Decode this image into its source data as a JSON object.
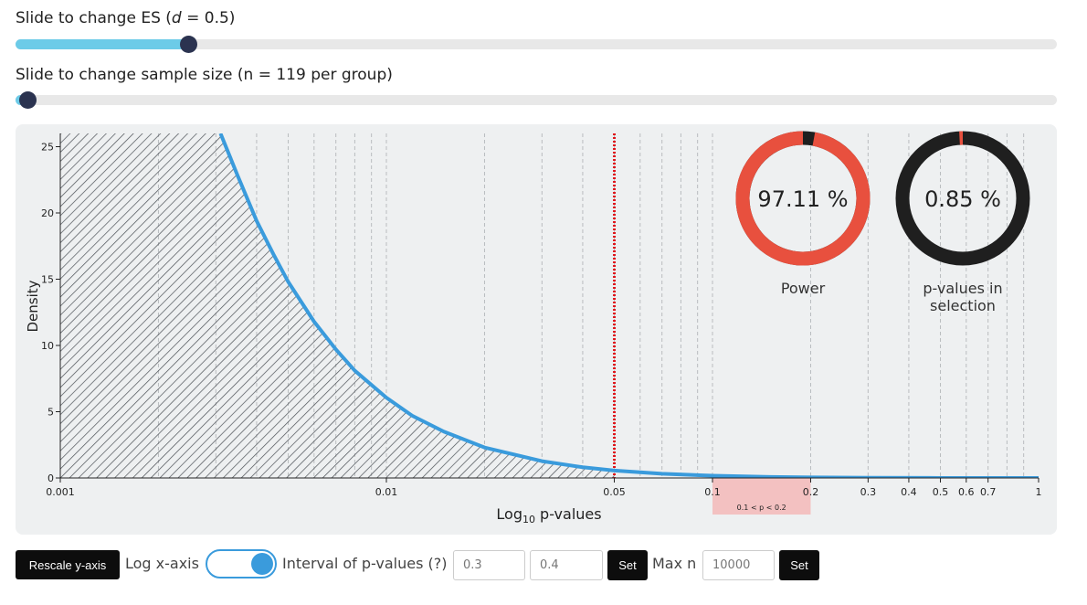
{
  "sliders": [
    {
      "label": "Slide to change ES (",
      "label_var": "d",
      "label_rest": " = 0.5)"
    },
    {
      "label": "Slide to change sample size (n = 119 per group)"
    }
  ],
  "chart_data": {
    "type": "line",
    "x_scale": "log",
    "xlabel": "Log",
    "xlabel_sub": "10",
    "xlabel_rest": " p-values",
    "ylabel": "Density",
    "xlim": [
      0.001,
      1
    ],
    "ylim": [
      0,
      26
    ],
    "xticks": [
      0.001,
      0.01,
      0.05,
      0.1,
      0.2,
      0.3,
      0.4,
      0.5,
      0.6,
      0.7,
      1
    ],
    "xminor": [
      0.002,
      0.003,
      0.004,
      0.005,
      0.006,
      0.007,
      0.008,
      0.009,
      0.02,
      0.03,
      0.04,
      0.06,
      0.07,
      0.08,
      0.09,
      0.8,
      0.9
    ],
    "yticks": [
      0,
      5,
      10,
      15,
      20,
      25
    ],
    "x": [
      0.0031,
      0.0035,
      0.004,
      0.0045,
      0.005,
      0.006,
      0.007,
      0.008,
      0.01,
      0.012,
      0.015,
      0.02,
      0.03,
      0.04,
      0.05,
      0.07,
      0.1,
      0.15,
      0.2,
      0.3,
      0.5,
      0.7,
      1
    ],
    "values": [
      26,
      22.8,
      19.4,
      16.9,
      14.8,
      11.8,
      9.7,
      8.1,
      6.06,
      4.7,
      3.5,
      2.3,
      1.27,
      0.81,
      0.56,
      0.32,
      0.17,
      0.08,
      0.04,
      0.02,
      0.004,
      0.002,
      0.001
    ],
    "color": "#3a9bdc",
    "alpha": 0.05,
    "alpha_color": "#e0151b",
    "shade_color": "#4a4f55",
    "selection": {
      "range": [
        0.1,
        0.2
      ],
      "label": "0.1 < p < 0.2",
      "color": "#f3c1c1"
    }
  },
  "gauges": [
    {
      "type": "pie",
      "value": 97.11,
      "value_label": "97.11 %",
      "caption": "Power",
      "color": "#e8503e",
      "track": "#1f1f1f"
    },
    {
      "type": "pie",
      "value": 0.85,
      "value_label": "0.85 %",
      "caption": "p-values in selection",
      "color": "#e8503e",
      "track": "#1f1f1f"
    }
  ],
  "controls": {
    "rescale": "Rescale y-axis",
    "log_label": "Log x-axis",
    "log_on": true,
    "interval_label": "Interval of p-values (?)",
    "interval": [
      "0.3",
      "0.4"
    ],
    "set": "Set",
    "maxn_label": "Max n",
    "maxn": "10000"
  }
}
